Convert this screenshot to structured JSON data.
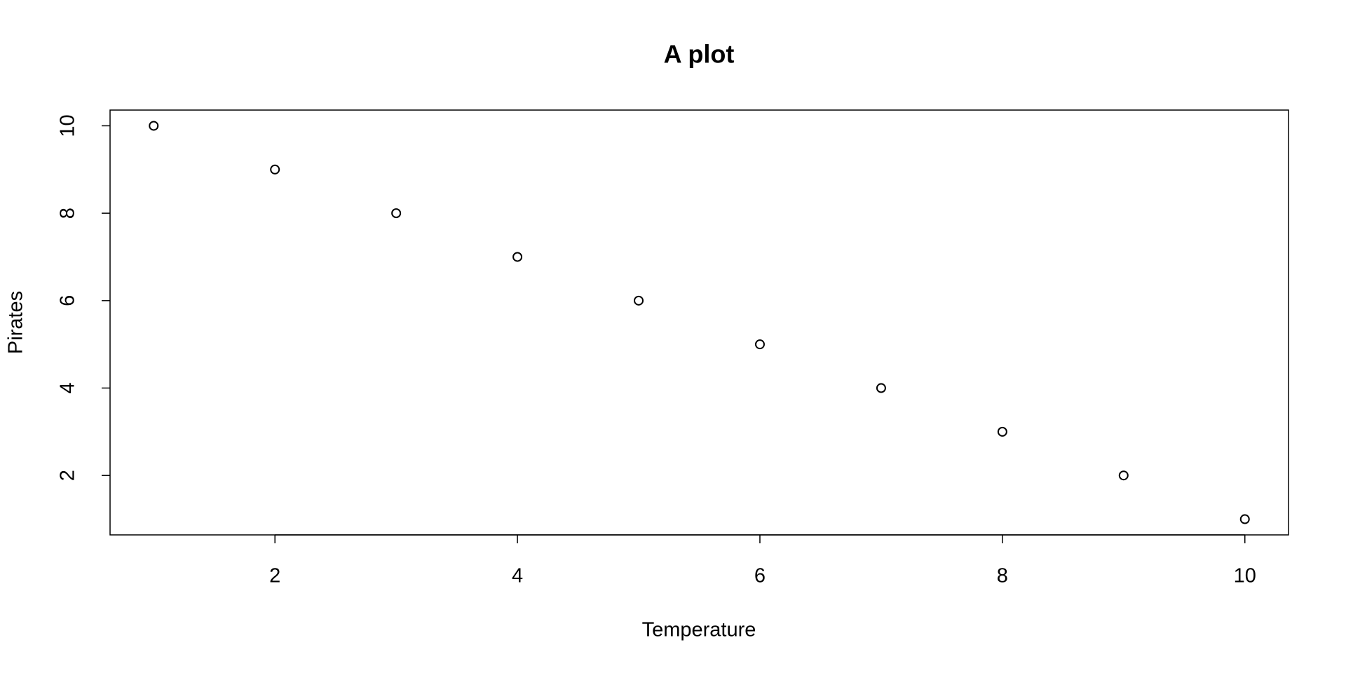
{
  "chart_data": {
    "type": "scatter",
    "title": "A plot",
    "x_label": "Temperature",
    "y_label": "Pirates",
    "x": [
      1,
      2,
      3,
      4,
      5,
      6,
      7,
      8,
      9,
      10
    ],
    "values": [
      10,
      9,
      8,
      7,
      6,
      5,
      4,
      3,
      2,
      1
    ],
    "color": "#000000",
    "xlim": [
      0.64,
      10.36
    ],
    "ylim": [
      0.64,
      10.36
    ],
    "xticks": [
      2,
      4,
      6,
      8,
      10
    ],
    "yticks": [
      2,
      4,
      6,
      8,
      10
    ],
    "grid": false
  }
}
